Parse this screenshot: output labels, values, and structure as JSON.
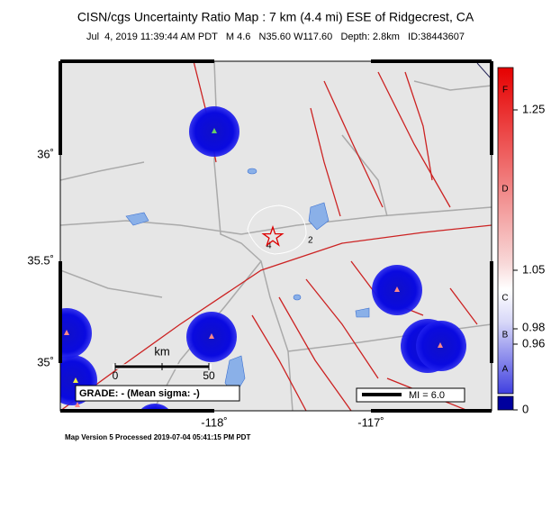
{
  "header": {
    "title": "CISN/cgs Uncertainty Ratio Map : 7 km (4.4 mi) ESE of Ridgecrest, CA",
    "subtitle": "Jul  4, 2019 11:39:44 AM PDT   M 4.6   N35.60 W117.60   Depth: 2.8km   ID:38443607"
  },
  "map": {
    "lat_labels": [
      "36˚",
      "35.5˚",
      "35˚"
    ],
    "lon_labels": [
      "-118˚",
      "-117˚"
    ],
    "contour_labels": [
      "2",
      "4"
    ],
    "scale_bar": {
      "unit": "km",
      "start": "0",
      "end": "50"
    },
    "grade": "GRADE: - (Mean sigma: -)",
    "intensity_legend": "MI = 6.0"
  },
  "colorbar": {
    "ticks": [
      "1.25",
      "1.05",
      "0.98",
      "0.96",
      "0"
    ],
    "grades": [
      "F",
      "D",
      "C",
      "B",
      "A"
    ]
  },
  "footer": "Map Version 5 Processed 2019-07-04 05:41:15 PM PDT"
}
